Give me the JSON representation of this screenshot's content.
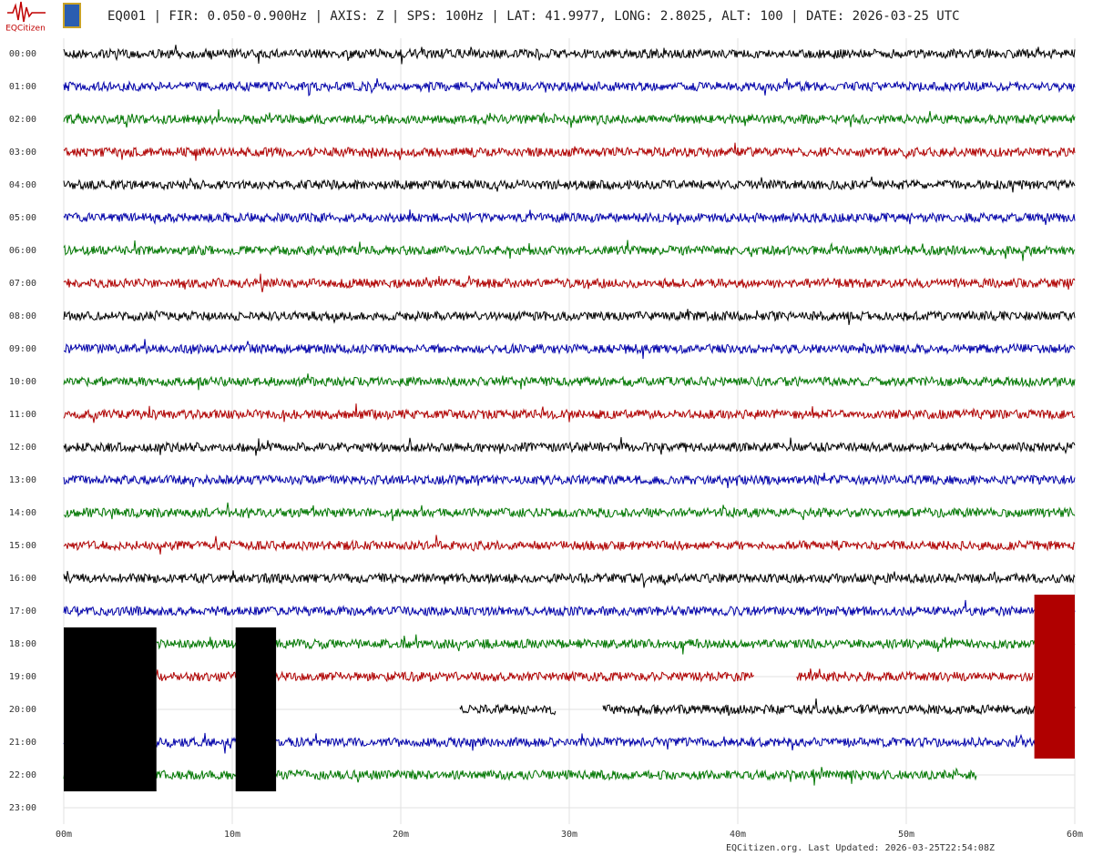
{
  "chart_data": {
    "type": "helicorder",
    "title": "EQ001 | FIR: 0.050-0.900Hz | AXIS: Z | SPS: 100Hz | LAT: 41.9977, LONG: 2.8025, ALT: 100 | DATE: 2026-03-25 UTC",
    "logo": "EQCitizen",
    "footer": "EQCitizen.org. Last Updated: 2026-03-25T22:54:08Z",
    "xlim": [
      0,
      60
    ],
    "xticks": [
      {
        "value": 0,
        "label": "00m"
      },
      {
        "value": 10,
        "label": "10m"
      },
      {
        "value": 20,
        "label": "20m"
      },
      {
        "value": 30,
        "label": "30m"
      },
      {
        "value": 40,
        "label": "40m"
      },
      {
        "value": 50,
        "label": "50m"
      },
      {
        "value": 60,
        "label": "60m"
      }
    ],
    "grid": true,
    "rows": [
      {
        "label": "00:00",
        "color": "#000000",
        "segments": [
          [
            0,
            60
          ]
        ]
      },
      {
        "label": "01:00",
        "color": "#0000aa",
        "segments": [
          [
            0,
            60
          ]
        ]
      },
      {
        "label": "02:00",
        "color": "#007700",
        "segments": [
          [
            0,
            60
          ]
        ]
      },
      {
        "label": "03:00",
        "color": "#b00000",
        "segments": [
          [
            0,
            60
          ]
        ]
      },
      {
        "label": "04:00",
        "color": "#000000",
        "segments": [
          [
            0,
            60
          ]
        ]
      },
      {
        "label": "05:00",
        "color": "#0000aa",
        "segments": [
          [
            0,
            60
          ]
        ]
      },
      {
        "label": "06:00",
        "color": "#007700",
        "segments": [
          [
            0,
            60
          ]
        ]
      },
      {
        "label": "07:00",
        "color": "#b00000",
        "segments": [
          [
            0,
            60
          ]
        ]
      },
      {
        "label": "08:00",
        "color": "#000000",
        "segments": [
          [
            0,
            60
          ]
        ]
      },
      {
        "label": "09:00",
        "color": "#0000aa",
        "segments": [
          [
            0,
            60
          ]
        ]
      },
      {
        "label": "10:00",
        "color": "#007700",
        "segments": [
          [
            0,
            60
          ]
        ]
      },
      {
        "label": "11:00",
        "color": "#b00000",
        "segments": [
          [
            0,
            60
          ]
        ]
      },
      {
        "label": "12:00",
        "color": "#000000",
        "segments": [
          [
            0,
            60
          ]
        ]
      },
      {
        "label": "13:00",
        "color": "#0000aa",
        "segments": [
          [
            0,
            60
          ]
        ]
      },
      {
        "label": "14:00",
        "color": "#007700",
        "segments": [
          [
            0,
            60
          ]
        ]
      },
      {
        "label": "15:00",
        "color": "#b00000",
        "segments": [
          [
            0,
            60
          ]
        ]
      },
      {
        "label": "16:00",
        "color": "#000000",
        "segments": [
          [
            0,
            60
          ]
        ]
      },
      {
        "label": "17:00",
        "color": "#0000aa",
        "segments": [
          [
            0,
            60
          ]
        ]
      },
      {
        "label": "18:00",
        "color": "#007700",
        "segments": [
          [
            5.5,
            60
          ]
        ]
      },
      {
        "label": "19:00",
        "color": "#b00000",
        "segments": [
          [
            5.5,
            41
          ],
          [
            43.5,
            57.5
          ]
        ]
      },
      {
        "label": "20:00",
        "color": "#000000",
        "segments": [
          [
            23.5,
            29.2
          ],
          [
            32,
            60
          ]
        ]
      },
      {
        "label": "21:00",
        "color": "#0000aa",
        "segments": [
          [
            0,
            60
          ]
        ]
      },
      {
        "label": "22:00",
        "color": "#007700",
        "segments": [
          [
            0,
            54.2
          ]
        ]
      },
      {
        "label": "23:00",
        "color": "#b00000",
        "segments": []
      }
    ],
    "blocks": [
      {
        "x": [
          0,
          5.5
        ],
        "rows": [
          17.5,
          22.5
        ],
        "color": "#000000"
      },
      {
        "x": [
          10.2,
          12.6
        ],
        "rows": [
          17.5,
          22.5
        ],
        "color": "#000000"
      },
      {
        "x": [
          57.6,
          60
        ],
        "rows": [
          16.5,
          21.5
        ],
        "color": "#b00000"
      }
    ]
  }
}
